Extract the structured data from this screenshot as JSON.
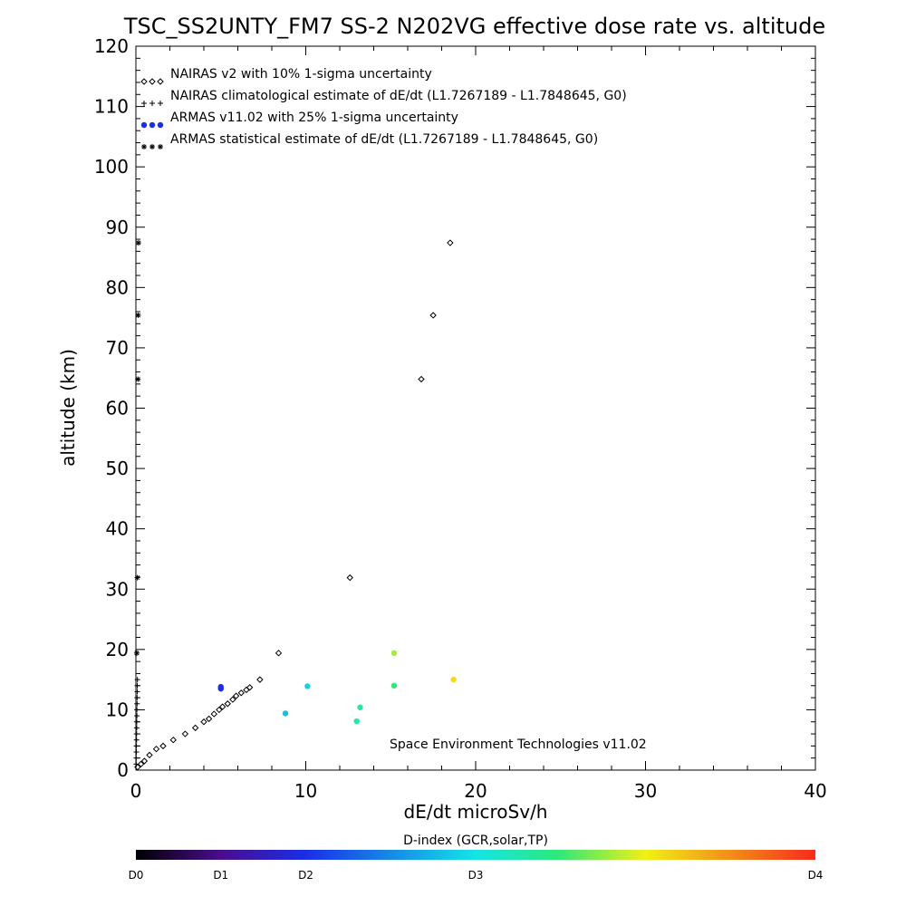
{
  "chart_data": {
    "type": "scatter",
    "title": "TSC_SS2UNTY_FM7 SS-2 N202VG effective dose rate vs. altitude",
    "xlabel": "dE/dt microSv/h",
    "ylabel": "altitude (km)",
    "xlim": [
      0,
      40
    ],
    "ylim": [
      0,
      120
    ],
    "x_ticks": [
      "0",
      "10",
      "20",
      "30",
      "40"
    ],
    "y_ticks": [
      "0",
      "10",
      "20",
      "30",
      "40",
      "50",
      "60",
      "70",
      "80",
      "90",
      "100",
      "110",
      "120"
    ],
    "grid": false,
    "legend_position": "top-left",
    "legend": [
      {
        "symbol": "◇◇◇",
        "label": "NAIRAS v2 with 10% 1-sigma uncertainty"
      },
      {
        "symbol": "+++",
        "label": "NAIRAS climatological estimate of dE/dt (L1.7267189 - L1.7848645, G0)"
      },
      {
        "symbol": "●●●",
        "label": "ARMAS v11.02 with 25% 1-sigma uncertainty"
      },
      {
        "symbol": "***",
        "label": "ARMAS statistical estimate of dE/dt (L1.7267189 - L1.7848645, G0)"
      }
    ],
    "annotation": "Space Environment Technologies v11.02",
    "series": [
      {
        "name": "NAIRAS v2 with 10% 1-sigma uncertainty",
        "marker": "diamond",
        "color": "#000000",
        "points": [
          [
            0.1,
            0.5
          ],
          [
            0.3,
            1.0
          ],
          [
            0.5,
            1.5
          ],
          [
            0.8,
            2.5
          ],
          [
            1.2,
            3.5
          ],
          [
            1.6,
            4.0
          ],
          [
            2.2,
            5.0
          ],
          [
            2.9,
            6.0
          ],
          [
            3.5,
            7.0
          ],
          [
            4.0,
            8.0
          ],
          [
            4.3,
            8.5
          ],
          [
            4.6,
            9.3
          ],
          [
            4.9,
            10.0
          ],
          [
            5.1,
            10.5
          ],
          [
            5.4,
            11.0
          ],
          [
            5.7,
            11.7
          ],
          [
            5.9,
            12.3
          ],
          [
            6.2,
            12.8
          ],
          [
            6.5,
            13.3
          ],
          [
            6.7,
            13.7
          ],
          [
            7.3,
            15.0
          ],
          [
            8.4,
            19.4
          ],
          [
            12.6,
            31.9
          ],
          [
            16.8,
            64.8
          ],
          [
            17.5,
            75.4
          ],
          [
            18.5,
            87.4
          ]
        ]
      },
      {
        "name": "NAIRAS climatological estimate of dE/dt (L1.7267189 - L1.7848645, G0)",
        "marker": "plus",
        "color": "#000000",
        "points": [
          [
            0.02,
            1
          ],
          [
            0.02,
            2
          ],
          [
            0.03,
            3
          ],
          [
            0.03,
            4
          ],
          [
            0.04,
            5
          ],
          [
            0.04,
            6
          ],
          [
            0.05,
            7
          ],
          [
            0.05,
            8
          ],
          [
            0.06,
            9
          ],
          [
            0.06,
            10
          ],
          [
            0.07,
            11
          ],
          [
            0.07,
            12
          ],
          [
            0.08,
            13
          ],
          [
            0.08,
            14
          ],
          [
            0.09,
            15
          ]
        ]
      },
      {
        "name": "ARMAS v11.02 with 25% 1-sigma uncertainty",
        "marker": "filled-circle",
        "points": [
          [
            5.0,
            13.8,
            1.0
          ],
          [
            5.0,
            13.5,
            1.0
          ],
          [
            8.8,
            9.4,
            1.8
          ],
          [
            10.1,
            13.9,
            1.9
          ],
          [
            13.0,
            8.1,
            2.3
          ],
          [
            13.2,
            10.4,
            2.3
          ],
          [
            15.2,
            14.0,
            2.5
          ],
          [
            15.2,
            19.4,
            2.8
          ],
          [
            18.7,
            15.0,
            3.1
          ]
        ]
      },
      {
        "name": "ARMAS statistical estimate of dE/dt (L1.7267189 - L1.7848645, G0)",
        "marker": "asterisk",
        "color": "#000000",
        "points": [
          [
            0.05,
            19.4
          ],
          [
            0.08,
            31.9
          ],
          [
            0.12,
            64.8
          ],
          [
            0.13,
            75.4
          ],
          [
            0.15,
            87.4
          ]
        ]
      }
    ],
    "colorbar": {
      "label": "D-index (GCR,solar,TP)",
      "range": [
        0,
        4
      ],
      "tick_labels": [
        "D0",
        "D1",
        "D2",
        "D3",
        "D4"
      ],
      "tick_values": [
        0,
        0.5,
        1.0,
        2.0,
        4.0
      ]
    }
  }
}
